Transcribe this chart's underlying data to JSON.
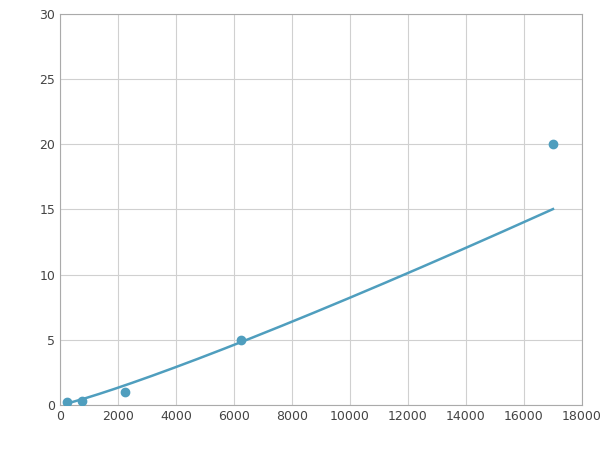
{
  "x_points": [
    250,
    750,
    2250,
    6250,
    17000
  ],
  "y_points": [
    0.2,
    0.3,
    1.0,
    5.0,
    20.0
  ],
  "line_color": "#4f9ebe",
  "marker_color": "#4f9ebe",
  "marker_size": 6,
  "marker_style": "o",
  "xlim": [
    0,
    18000
  ],
  "ylim": [
    0,
    30
  ],
  "xticks": [
    0,
    2000,
    4000,
    6000,
    8000,
    10000,
    12000,
    14000,
    16000,
    18000
  ],
  "yticks": [
    0,
    5,
    10,
    15,
    20,
    25,
    30
  ],
  "grid_color": "#d0d0d0",
  "grid_linestyle": "-",
  "grid_linewidth": 0.8,
  "background_color": "#ffffff",
  "spine_color": "#aaaaaa",
  "line_width": 1.8,
  "figsize": [
    6.0,
    4.5
  ],
  "dpi": 100
}
